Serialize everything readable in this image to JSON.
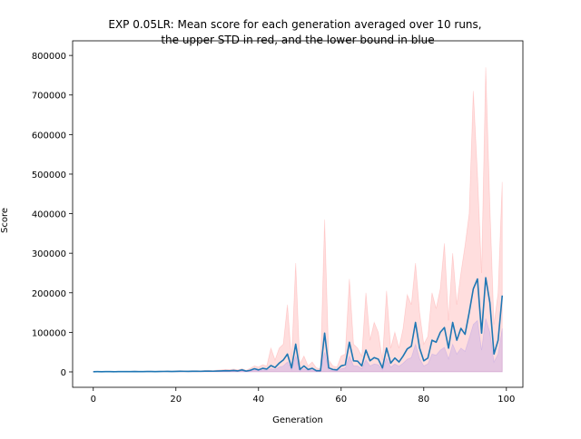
{
  "chart_data": {
    "type": "line",
    "title": [
      "EXP 0.05LR: Mean score for each generation averaged over 10 runs,",
      "the upper STD in red, and the lower bound in blue"
    ],
    "xlabel": "Generation",
    "ylabel": "Score",
    "x": [
      0,
      1,
      2,
      3,
      4,
      5,
      6,
      7,
      8,
      9,
      10,
      11,
      12,
      13,
      14,
      15,
      16,
      17,
      18,
      19,
      20,
      21,
      22,
      23,
      24,
      25,
      26,
      27,
      28,
      29,
      30,
      31,
      32,
      33,
      34,
      35,
      36,
      37,
      38,
      39,
      40,
      41,
      42,
      43,
      44,
      45,
      46,
      47,
      48,
      49,
      50,
      51,
      52,
      53,
      54,
      55,
      56,
      57,
      58,
      59,
      60,
      61,
      62,
      63,
      64,
      65,
      66,
      67,
      68,
      69,
      70,
      71,
      72,
      73,
      74,
      75,
      76,
      77,
      78,
      79,
      80,
      81,
      82,
      83,
      84,
      85,
      86,
      87,
      88,
      89,
      90,
      91,
      92,
      93,
      94,
      95,
      96,
      97,
      98,
      99
    ],
    "series": [
      {
        "name": "upper",
        "color": "rgba(255,0,0,0.13)",
        "fill": true,
        "values": [
          1000,
          1200,
          1000,
          1400,
          1200,
          1000,
          1200,
          1400,
          1600,
          1400,
          1800,
          1600,
          1400,
          1800,
          2000,
          1600,
          1800,
          2200,
          2400,
          2000,
          2600,
          3000,
          2800,
          2400,
          3000,
          3200,
          2800,
          3600,
          4000,
          3400,
          4400,
          5000,
          6000,
          5600,
          7000,
          5000,
          8000,
          4000,
          9000,
          15000,
          12000,
          18000,
          15000,
          60000,
          30000,
          60000,
          70000,
          170000,
          30000,
          275000,
          20000,
          40000,
          15000,
          25000,
          10000,
          8000,
          385000,
          30000,
          15000,
          12000,
          40000,
          45000,
          235000,
          70000,
          60000,
          40000,
          200000,
          80000,
          125000,
          100000,
          30000,
          205000,
          60000,
          100000,
          60000,
          110000,
          195000,
          170000,
          275000,
          150000,
          70000,
          90000,
          200000,
          160000,
          210000,
          325000,
          130000,
          300000,
          170000,
          250000,
          320000,
          400000,
          710000,
          500000,
          250000,
          770000,
          420000,
          120000,
          200000,
          480000
        ]
      },
      {
        "name": "lower",
        "color": "rgba(0,0,255,0.1)",
        "fill": true,
        "values": [
          300,
          300,
          300,
          400,
          300,
          300,
          300,
          400,
          400,
          400,
          500,
          400,
          400,
          500,
          500,
          400,
          500,
          600,
          600,
          500,
          700,
          800,
          700,
          600,
          800,
          800,
          700,
          900,
          1000,
          900,
          1100,
          1300,
          1500,
          1400,
          1800,
          1300,
          3000,
          1000,
          2000,
          5000,
          3000,
          5000,
          4000,
          8000,
          6000,
          12000,
          15000,
          25000,
          5000,
          40000,
          3000,
          8000,
          3000,
          5000,
          1500,
          1500,
          50000,
          5000,
          3000,
          2500,
          8000,
          10000,
          40000,
          15000,
          15000,
          8000,
          30000,
          15000,
          20000,
          18000,
          5000,
          35000,
          12000,
          20000,
          14000,
          22000,
          32000,
          36000,
          70000,
          33000,
          15000,
          20000,
          45000,
          42000,
          55000,
          62000,
          33000,
          70000,
          45000,
          60000,
          52000,
          85000,
          120000,
          130000,
          55000,
          135000,
          100000,
          25000,
          45000,
          110000
        ]
      },
      {
        "name": "mean",
        "color": "#1f77b4",
        "fill": false,
        "values": [
          500,
          600,
          500,
          700,
          600,
          500,
          600,
          700,
          800,
          700,
          900,
          800,
          700,
          900,
          1000,
          800,
          900,
          1100,
          1200,
          1000,
          1300,
          1500,
          1400,
          1200,
          1500,
          1600,
          1400,
          1800,
          2000,
          1700,
          2200,
          2500,
          3000,
          2800,
          3500,
          2500,
          5000,
          2000,
          4000,
          8000,
          5000,
          9000,
          7000,
          16000,
          11000,
          22000,
          30000,
          45000,
          10000,
          70000,
          6000,
          15000,
          6000,
          9000,
          3000,
          3000,
          98000,
          10000,
          6000,
          5000,
          15000,
          18000,
          75000,
          28000,
          27000,
          15000,
          55000,
          28000,
          36000,
          32000,
          10000,
          60000,
          22000,
          35000,
          25000,
          40000,
          58000,
          65000,
          125000,
          60000,
          28000,
          35000,
          80000,
          75000,
          100000,
          112000,
          60000,
          125000,
          80000,
          110000,
          95000,
          150000,
          210000,
          235000,
          98000,
          238000,
          175000,
          45000,
          80000,
          193000
        ]
      }
    ],
    "xlim": [
      -5,
      104
    ],
    "xticks": [
      0,
      20,
      40,
      60,
      80,
      100
    ],
    "ylim": [
      -39000,
      837000
    ],
    "yticks": [
      0,
      100000,
      200000,
      300000,
      400000,
      500000,
      600000,
      700000,
      800000
    ]
  }
}
